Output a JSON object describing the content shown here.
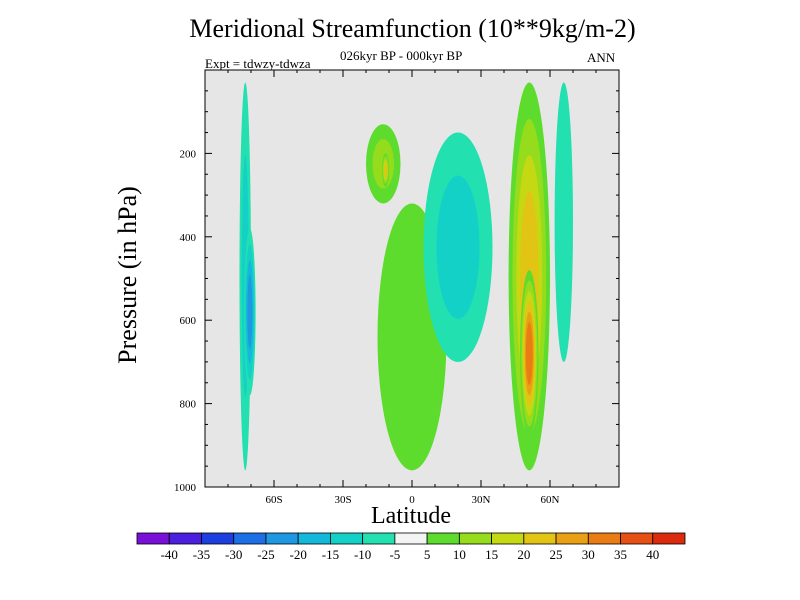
{
  "chart_data": {
    "type": "heatmap",
    "title": "Meridional Streamfunction (10**9kg/m-2)",
    "subtitle": "026kyr BP - 000kyr BP",
    "left_label": "Expt = tdwzy-tdwza",
    "right_label": "ANN",
    "xlabel": "Latitude",
    "ylabel": "Pressure (in hPa)",
    "xlim": [
      -90,
      90
    ],
    "ylim": [
      1000,
      0
    ],
    "x_ticks": [
      {
        "value": -60,
        "label": "60S"
      },
      {
        "value": -30,
        "label": "30S"
      },
      {
        "value": 0,
        "label": "0"
      },
      {
        "value": 30,
        "label": "30N"
      },
      {
        "value": 60,
        "label": "60N"
      }
    ],
    "y_ticks": [
      {
        "value": 200,
        "label": "200"
      },
      {
        "value": 400,
        "label": "400"
      },
      {
        "value": 600,
        "label": "600"
      },
      {
        "value": 800,
        "label": "800"
      },
      {
        "value": 1000,
        "label": "1000"
      }
    ],
    "missing_color": "#e6e6e6",
    "colorbar": {
      "labels": [
        "-40",
        "-35",
        "-30",
        "-25",
        "-20",
        "-15",
        "-10",
        "-5",
        "5",
        "10",
        "15",
        "20",
        "25",
        "30",
        "35",
        "40"
      ],
      "colors": [
        "#7a0fd8",
        "#4b1fdd",
        "#1e3fe0",
        "#1e6fe6",
        "#1e98e2",
        "#14b8da",
        "#14d1c8",
        "#22e0b0",
        "#f4f4f4",
        "#5ddc2e",
        "#94dc1c",
        "#c4d814",
        "#e2c414",
        "#eaa014",
        "#ea7c14",
        "#e65014",
        "#dc2a0e"
      ]
    },
    "features": [
      {
        "name": "cell-40s",
        "value": -12,
        "lat_range": [
          -75,
          -70
        ],
        "p_range": [
          30,
          960
        ]
      },
      {
        "name": "cell-40s-core",
        "value": -22,
        "lat_range": [
          -73,
          -68
        ],
        "p_range": [
          380,
          780
        ]
      },
      {
        "name": "cell-equator-upper",
        "value": 15,
        "lat_range": [
          -20,
          -5
        ],
        "p_range": [
          130,
          320
        ]
      },
      {
        "name": "cell-equator-core",
        "value": 22,
        "lat_range": [
          -13,
          -10
        ],
        "p_range": [
          200,
          280
        ]
      },
      {
        "name": "cell-equator-lower",
        "value": 10,
        "lat_range": [
          -15,
          15
        ],
        "p_range": [
          320,
          960
        ]
      },
      {
        "name": "cell-15n",
        "value": -12,
        "lat_range": [
          5,
          35
        ],
        "p_range": [
          150,
          700
        ]
      },
      {
        "name": "cell-50n",
        "value": 25,
        "lat_range": [
          42,
          60
        ],
        "p_range": [
          30,
          960
        ]
      },
      {
        "name": "cell-50n-core",
        "value": 35,
        "lat_range": [
          47,
          55
        ],
        "p_range": [
          480,
          880
        ]
      },
      {
        "name": "cell-70n",
        "value": -8,
        "lat_range": [
          62,
          70
        ],
        "p_range": [
          30,
          700
        ]
      }
    ]
  }
}
